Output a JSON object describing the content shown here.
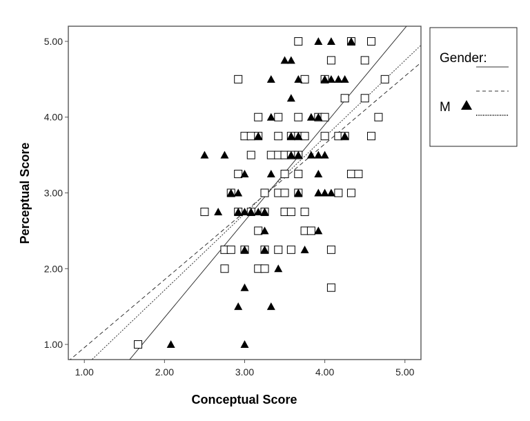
{
  "chart_data": {
    "type": "scatter",
    "xlabel": "Conceptual Score",
    "ylabel": "Perceptual Score",
    "xlim": [
      0.8,
      5.2
    ],
    "ylim": [
      0.8,
      5.2
    ],
    "x_ticks": [
      "1.00",
      "2.00",
      "3.00",
      "4.00",
      "5.00"
    ],
    "y_ticks": [
      "1.00",
      "2.00",
      "3.00",
      "4.00",
      "5.00"
    ],
    "grid": false,
    "legend": {
      "position": "right-outside",
      "title": "Gender:",
      "entries": [
        {
          "label": "M",
          "marker": "triangle-filled"
        }
      ]
    },
    "series": [
      {
        "marker": "square-open",
        "points": [
          [
            1.67,
            1.0
          ],
          [
            2.92,
            4.5
          ],
          [
            3.67,
            5.0
          ],
          [
            4.33,
            5.0
          ],
          [
            4.58,
            5.0
          ],
          [
            4.08,
            4.75
          ],
          [
            4.5,
            4.75
          ],
          [
            3.75,
            4.5
          ],
          [
            4.0,
            4.5
          ],
          [
            4.75,
            4.5
          ],
          [
            4.25,
            4.25
          ],
          [
            4.5,
            4.25
          ],
          [
            3.17,
            4.0
          ],
          [
            3.42,
            4.0
          ],
          [
            3.67,
            4.0
          ],
          [
            3.92,
            4.0
          ],
          [
            4.0,
            4.0
          ],
          [
            4.67,
            4.0
          ],
          [
            3.0,
            3.75
          ],
          [
            3.08,
            3.75
          ],
          [
            3.17,
            3.75
          ],
          [
            3.42,
            3.75
          ],
          [
            3.58,
            3.75
          ],
          [
            3.67,
            3.75
          ],
          [
            3.75,
            3.75
          ],
          [
            4.0,
            3.75
          ],
          [
            4.17,
            3.75
          ],
          [
            4.25,
            3.75
          ],
          [
            4.58,
            3.75
          ],
          [
            3.08,
            3.5
          ],
          [
            3.33,
            3.5
          ],
          [
            3.42,
            3.5
          ],
          [
            3.5,
            3.5
          ],
          [
            3.58,
            3.5
          ],
          [
            3.67,
            3.5
          ],
          [
            2.92,
            3.25
          ],
          [
            3.5,
            3.25
          ],
          [
            3.67,
            3.25
          ],
          [
            4.33,
            3.25
          ],
          [
            4.42,
            3.25
          ],
          [
            2.83,
            3.0
          ],
          [
            3.25,
            3.0
          ],
          [
            3.42,
            3.0
          ],
          [
            3.5,
            3.0
          ],
          [
            3.67,
            3.0
          ],
          [
            4.17,
            3.0
          ],
          [
            4.33,
            3.0
          ],
          [
            2.5,
            2.75
          ],
          [
            2.92,
            2.75
          ],
          [
            3.08,
            2.75
          ],
          [
            3.25,
            2.75
          ],
          [
            3.5,
            2.75
          ],
          [
            3.58,
            2.75
          ],
          [
            3.75,
            2.75
          ],
          [
            3.17,
            2.5
          ],
          [
            3.75,
            2.5
          ],
          [
            3.83,
            2.5
          ],
          [
            2.75,
            2.25
          ],
          [
            2.83,
            2.25
          ],
          [
            3.0,
            2.25
          ],
          [
            3.25,
            2.25
          ],
          [
            3.42,
            2.25
          ],
          [
            3.58,
            2.25
          ],
          [
            4.08,
            2.25
          ],
          [
            2.75,
            2.0
          ],
          [
            3.17,
            2.0
          ],
          [
            3.25,
            2.0
          ],
          [
            4.08,
            1.75
          ]
        ]
      },
      {
        "name": "M",
        "marker": "triangle-filled",
        "points": [
          [
            2.08,
            1.0
          ],
          [
            3.0,
            1.0
          ],
          [
            2.92,
            1.5
          ],
          [
            3.33,
            1.5
          ],
          [
            3.0,
            1.75
          ],
          [
            3.42,
            2.0
          ],
          [
            3.0,
            2.25
          ],
          [
            3.25,
            2.25
          ],
          [
            3.75,
            2.25
          ],
          [
            3.25,
            2.5
          ],
          [
            3.92,
            2.5
          ],
          [
            2.67,
            2.75
          ],
          [
            2.92,
            2.75
          ],
          [
            3.0,
            2.75
          ],
          [
            3.08,
            2.75
          ],
          [
            3.17,
            2.75
          ],
          [
            3.25,
            2.75
          ],
          [
            2.83,
            3.0
          ],
          [
            2.92,
            3.0
          ],
          [
            3.67,
            3.0
          ],
          [
            3.92,
            3.0
          ],
          [
            4.0,
            3.0
          ],
          [
            4.08,
            3.0
          ],
          [
            3.0,
            3.25
          ],
          [
            3.33,
            3.25
          ],
          [
            3.92,
            3.25
          ],
          [
            2.5,
            3.5
          ],
          [
            2.75,
            3.5
          ],
          [
            3.58,
            3.5
          ],
          [
            3.67,
            3.5
          ],
          [
            3.83,
            3.5
          ],
          [
            3.92,
            3.5
          ],
          [
            4.0,
            3.5
          ],
          [
            3.17,
            3.75
          ],
          [
            3.58,
            3.75
          ],
          [
            3.67,
            3.75
          ],
          [
            4.25,
            3.75
          ],
          [
            3.33,
            4.0
          ],
          [
            3.83,
            4.0
          ],
          [
            3.92,
            4.0
          ],
          [
            3.58,
            4.25
          ],
          [
            3.33,
            4.5
          ],
          [
            3.67,
            4.5
          ],
          [
            4.0,
            4.5
          ],
          [
            4.08,
            4.5
          ],
          [
            4.17,
            4.5
          ],
          [
            4.25,
            4.5
          ],
          [
            3.5,
            4.75
          ],
          [
            3.58,
            4.75
          ],
          [
            3.92,
            5.0
          ],
          [
            4.08,
            5.0
          ],
          [
            4.33,
            5.0
          ]
        ]
      }
    ],
    "fit_lines": [
      {
        "style": "solid",
        "x": [
          1.0,
          5.2
        ],
        "y": [
          0.08,
          5.43
        ]
      },
      {
        "style": "dashed",
        "x": [
          0.6,
          5.2
        ],
        "y": [
          0.6,
          4.72
        ]
      },
      {
        "style": "dotted",
        "x": [
          0.6,
          5.2
        ],
        "y": [
          0.3,
          4.95
        ]
      }
    ],
    "colors": {
      "markers": "#000000",
      "axes": "#555555",
      "lines": "#333333"
    }
  }
}
